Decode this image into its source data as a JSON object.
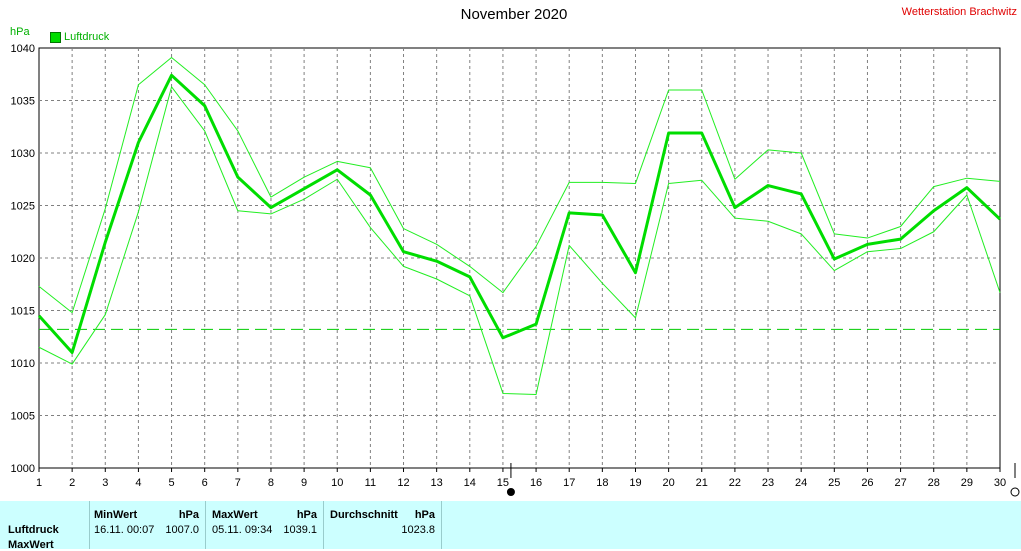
{
  "header": {
    "title": "November 2020",
    "station": "Wetterstation Brachwitz",
    "unit": "hPa",
    "legend": "Luftdruck"
  },
  "colors": {
    "line": "#00dd00",
    "line_thin": "#22ee22",
    "grid": "#808080",
    "avg": "#00cc00",
    "stats_bg": "#ccffff",
    "station": "#e00000"
  },
  "chart_data": {
    "type": "line",
    "title": "November 2020",
    "ylabel": "hPa",
    "ylim": [
      1000,
      1040
    ],
    "xlim": [
      1,
      30
    ],
    "yticks": [
      1000,
      1005,
      1010,
      1015,
      1020,
      1025,
      1030,
      1035,
      1040
    ],
    "x": [
      1,
      2,
      3,
      4,
      5,
      6,
      7,
      8,
      9,
      10,
      11,
      12,
      13,
      14,
      15,
      16,
      17,
      18,
      19,
      20,
      21,
      22,
      23,
      24,
      25,
      26,
      27,
      28,
      29,
      30
    ],
    "series": [
      {
        "name": "Luftdruck",
        "values": [
          1014.5,
          1011.0,
          1021.5,
          1031.0,
          1037.4,
          1034.5,
          1027.7,
          1024.8,
          1026.6,
          1028.4,
          1026.0,
          1020.6,
          1019.7,
          1018.2,
          1012.4,
          1013.7,
          1024.3,
          1024.1,
          1018.6,
          1031.9,
          1031.9,
          1024.8,
          1026.9,
          1026.1,
          1019.9,
          1021.3,
          1021.8,
          1024.5,
          1026.7,
          1023.7
        ]
      },
      {
        "role": "max",
        "values": [
          1017.3,
          1014.8,
          1024.7,
          1036.5,
          1039.1,
          1036.5,
          1032.1,
          1025.8,
          1027.7,
          1029.2,
          1028.6,
          1022.8,
          1021.3,
          1019.2,
          1016.7,
          1021.1,
          1027.2,
          1027.2,
          1027.1,
          1036.0,
          1036.0,
          1027.5,
          1030.3,
          1030.0,
          1022.3,
          1021.9,
          1023.0,
          1026.8,
          1027.6,
          1027.3
        ]
      },
      {
        "role": "min",
        "values": [
          1011.5,
          1009.9,
          1014.6,
          1024.4,
          1036.3,
          1032.1,
          1024.5,
          1024.2,
          1025.6,
          1027.5,
          1022.9,
          1019.2,
          1018.0,
          1016.4,
          1007.1,
          1007.0,
          1021.2,
          1017.6,
          1014.3,
          1027.1,
          1027.4,
          1023.8,
          1023.5,
          1022.3,
          1018.8,
          1020.6,
          1020.9,
          1022.5,
          1026.0,
          1016.7
        ]
      }
    ],
    "average_line": 1013.2,
    "grid": true,
    "legend_position": "top-left"
  },
  "stats": {
    "columns": [
      {
        "label": "MinWert",
        "unit": "hPa",
        "time": "16.11.  00:07",
        "value": "1007.0"
      },
      {
        "label": "MaxWert",
        "unit": "hPa",
        "time": "05.11.  09:34",
        "value": "1039.1"
      },
      {
        "label": "Durchschnitt",
        "unit": "hPa",
        "time": "",
        "value": "1023.8"
      }
    ],
    "row_labels": [
      "Luftdruck",
      "MaxWert"
    ]
  }
}
